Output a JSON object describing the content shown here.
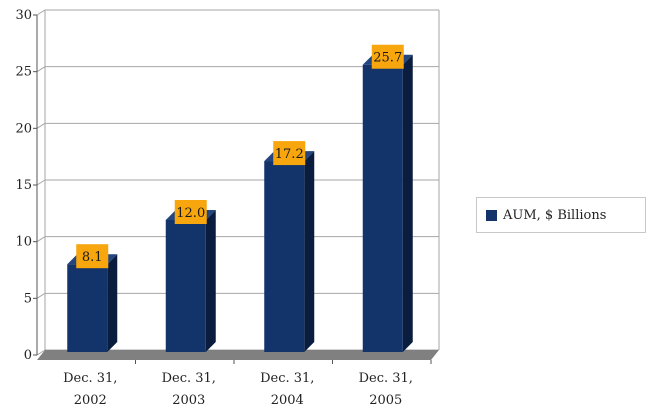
{
  "chart_data": {
    "type": "bar",
    "categories": [
      [
        "Dec. 31,",
        "2002"
      ],
      [
        "Dec. 31,",
        "2003"
      ],
      [
        "Dec. 31,",
        "2004"
      ],
      [
        "Dec. 31,",
        "2005"
      ]
    ],
    "series": [
      {
        "name": "AUM, $ Billions",
        "values": [
          8.1,
          12.0,
          17.2,
          25.7
        ],
        "labels": [
          "8.1",
          "12.0",
          "17.2",
          "25.7"
        ]
      }
    ],
    "title": "",
    "xlabel": "",
    "ylabel": "",
    "ylim": [
      0,
      30
    ],
    "yticks": [
      "0",
      "5",
      "10",
      "15",
      "20",
      "25",
      "30"
    ],
    "grid": true,
    "legend_position": "right",
    "colors": {
      "bar_front": "#13346a",
      "bar_side": "#0a1d3f",
      "bar_top": "#23467f",
      "data_label_bg": "#f7a60e",
      "floor": "#808080",
      "grid": "#a6a6a6",
      "axis": "#555555"
    }
  },
  "legend": {
    "label": "AUM, $ Billions"
  }
}
